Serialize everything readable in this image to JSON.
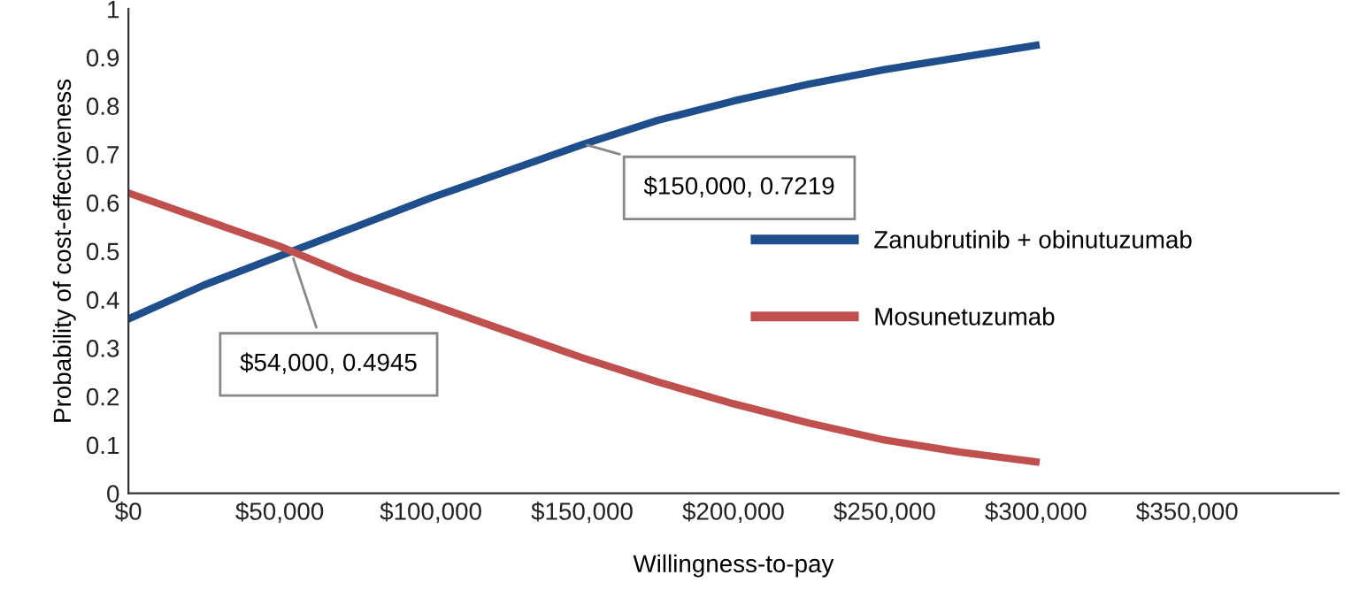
{
  "chart_data": {
    "type": "line",
    "xlabel": "Willingness-to-pay",
    "ylabel": "Probability of cost-effectiveness",
    "x": [
      0,
      25000,
      50000,
      75000,
      100000,
      125000,
      150000,
      175000,
      200000,
      225000,
      250000,
      275000,
      300000
    ],
    "series": [
      {
        "name": "Zanubrutinib + obinutuzumab",
        "color": "#1f4e8c",
        "values": [
          0.36,
          0.43,
          0.49,
          0.55,
          0.61,
          0.665,
          0.72,
          0.77,
          0.81,
          0.845,
          0.875,
          0.9,
          0.925
        ]
      },
      {
        "name": "Mosunetuzumab",
        "color": "#c0504d",
        "values": [
          0.62,
          0.565,
          0.51,
          0.445,
          0.39,
          0.335,
          0.28,
          0.23,
          0.185,
          0.145,
          0.11,
          0.085,
          0.065
        ]
      }
    ],
    "annotations": [
      {
        "text": "$150,000, 0.7219",
        "x": 150000,
        "y": 0.7219
      },
      {
        "text": "$54,000, 0.4945",
        "x": 54000,
        "y": 0.4945
      }
    ],
    "xlim": [
      0,
      400000
    ],
    "ylim": [
      0,
      1
    ],
    "xticks": [
      {
        "value": 0,
        "label": "$0"
      },
      {
        "value": 50000,
        "label": "$50,000"
      },
      {
        "value": 100000,
        "label": "$100,000"
      },
      {
        "value": 150000,
        "label": "$150,000"
      },
      {
        "value": 200000,
        "label": "$200,000"
      },
      {
        "value": 250000,
        "label": "$250,000"
      },
      {
        "value": 300000,
        "label": "$300,000"
      },
      {
        "value": 350000,
        "label": "$350,000"
      }
    ],
    "yticks": [
      0,
      0.1,
      0.2,
      0.3,
      0.4,
      0.5,
      0.6,
      0.7,
      0.8,
      0.9,
      1
    ],
    "grid": false,
    "legend": "right",
    "marker": "none",
    "line_style": "solid"
  }
}
